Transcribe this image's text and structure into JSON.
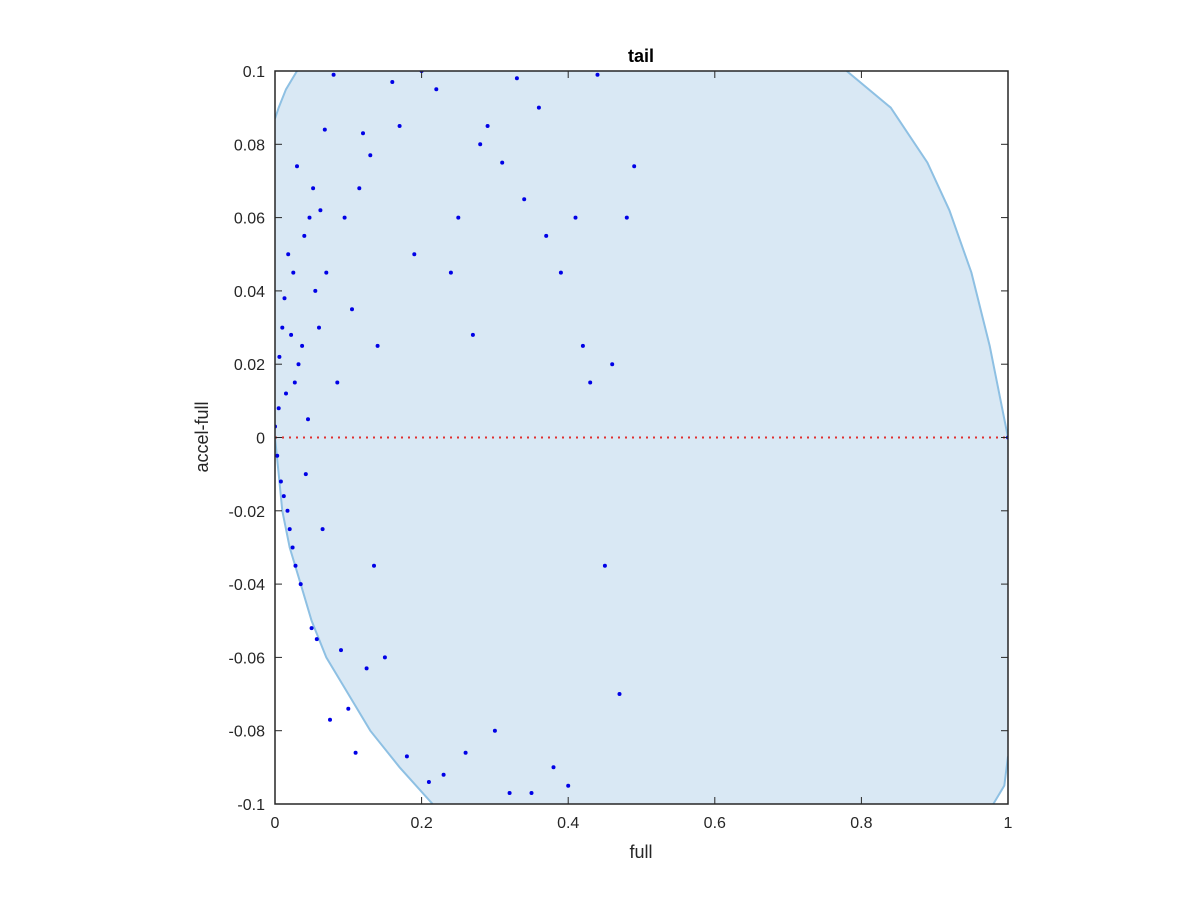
{
  "chart_data": {
    "type": "scatter",
    "title": "tail",
    "xlabel": "full",
    "ylabel": "accel-full",
    "xlim": [
      0,
      1
    ],
    "ylim": [
      -0.1,
      0.1
    ],
    "xticks": [
      "0",
      "0.2",
      "0.4",
      "0.6",
      "0.8",
      "1"
    ],
    "xtick_values": [
      0,
      0.2,
      0.4,
      0.6,
      0.8,
      1
    ],
    "yticks": [
      "-0.1",
      "-0.08",
      "-0.06",
      "-0.04",
      "-0.02",
      "0",
      "0.02",
      "0.04",
      "0.06",
      "0.08",
      "0.1"
    ],
    "ytick_values": [
      -0.1,
      -0.08,
      -0.06,
      -0.04,
      -0.02,
      0,
      0.02,
      0.04,
      0.06,
      0.08,
      0.1
    ],
    "grid": false,
    "colors": {
      "points": "#0000e6",
      "region_fill": "#d9e8f4",
      "region_edge": "#8ec0e3",
      "zero_line": "#e03030",
      "axes": "#262626"
    },
    "region": {
      "left_boundary": [
        [
          0,
          0
        ],
        [
          0.005,
          -0.01
        ],
        [
          0.01,
          -0.02
        ],
        [
          0.02,
          -0.03
        ],
        [
          0.035,
          -0.04
        ],
        [
          0.05,
          -0.05
        ],
        [
          0.07,
          -0.06
        ],
        [
          0.1,
          -0.07
        ],
        [
          0.13,
          -0.08
        ],
        [
          0.17,
          -0.09
        ],
        [
          0.215,
          -0.1
        ]
      ],
      "left_boundary_upper": [
        [
          0.03,
          0.1
        ],
        [
          0.015,
          0.095
        ],
        [
          0.005,
          0.09
        ],
        [
          0,
          0.087
        ]
      ],
      "right_boundary_upper": [
        [
          0.78,
          0.1
        ],
        [
          0.84,
          0.09
        ],
        [
          0.89,
          0.075
        ],
        [
          0.92,
          0.062
        ],
        [
          0.95,
          0.045
        ],
        [
          0.975,
          0.025
        ],
        [
          0.99,
          0.01
        ],
        [
          1.0,
          0
        ]
      ],
      "right_boundary_lower": [
        [
          1.0,
          -0.087
        ],
        [
          0.995,
          -0.095
        ],
        [
          0.98,
          -0.1
        ]
      ]
    },
    "zero_line": {
      "y": 0,
      "style": "dotted"
    },
    "series": [
      {
        "x": [
          0.0,
          0.003,
          0.005,
          0.006,
          0.008,
          0.01,
          0.012,
          0.013,
          0.015,
          0.017,
          0.018,
          0.02,
          0.022,
          0.024,
          0.025,
          0.027,
          0.028,
          0.03,
          0.032,
          0.035,
          0.037,
          0.04,
          0.042,
          0.045,
          0.047,
          0.05,
          0.052,
          0.055,
          0.057,
          0.06,
          0.062,
          0.065,
          0.068,
          0.07,
          0.075,
          0.08,
          0.085,
          0.09,
          0.095,
          0.1,
          0.105,
          0.11,
          0.115,
          0.12,
          0.125,
          0.13,
          0.135,
          0.14,
          0.15,
          0.16,
          0.17,
          0.18,
          0.19,
          0.2,
          0.21,
          0.22,
          0.23,
          0.24,
          0.25,
          0.26,
          0.27,
          0.28,
          0.29,
          0.3,
          0.31,
          0.32,
          0.33,
          0.34,
          0.35,
          0.36,
          0.37,
          0.38,
          0.39,
          0.4,
          0.41,
          0.42,
          0.43,
          0.44,
          0.45,
          0.46,
          0.47,
          0.48,
          0.49,
          1.0
        ],
        "y": [
          0.003,
          -0.005,
          0.008,
          0.022,
          -0.012,
          0.03,
          -0.016,
          0.038,
          0.012,
          -0.02,
          0.05,
          -0.025,
          0.028,
          -0.03,
          0.045,
          0.015,
          -0.035,
          0.074,
          0.02,
          -0.04,
          0.025,
          0.055,
          -0.01,
          0.005,
          0.06,
          -0.052,
          0.068,
          0.04,
          -0.055,
          0.03,
          0.062,
          -0.025,
          0.084,
          0.045,
          -0.077,
          0.099,
          0.015,
          -0.058,
          0.06,
          -0.074,
          0.035,
          -0.086,
          0.068,
          0.083,
          -0.063,
          0.077,
          -0.035,
          0.025,
          -0.06,
          0.097,
          0.085,
          -0.087,
          0.05,
          0.1,
          -0.094,
          0.095,
          -0.092,
          0.045,
          0.06,
          -0.086,
          0.028,
          0.08,
          0.085,
          -0.08,
          0.075,
          -0.097,
          0.098,
          0.065,
          -0.097,
          0.09,
          0.055,
          -0.09,
          0.045,
          -0.095,
          0.06,
          0.025,
          0.015,
          0.099,
          -0.035,
          0.02,
          -0.07,
          0.06,
          0.074,
          0.0
        ]
      }
    ]
  }
}
